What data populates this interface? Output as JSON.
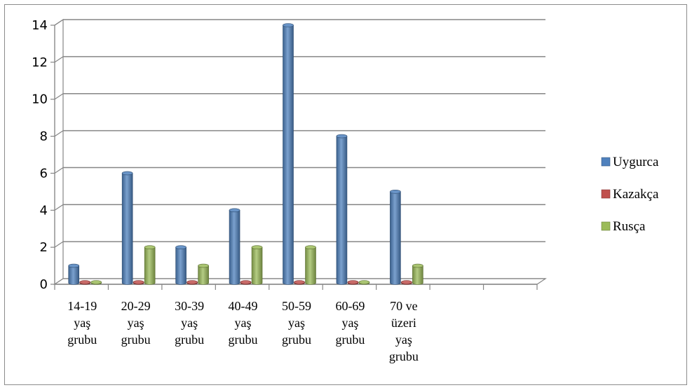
{
  "chart_data": {
    "type": "bar",
    "categories": [
      [
        "14-19",
        "yaş",
        "grubu"
      ],
      [
        "20-29",
        "yaş",
        "grubu"
      ],
      [
        "30-39",
        "yaş",
        "grubu"
      ],
      [
        "40-49",
        "yaş",
        "grubu"
      ],
      [
        "50-59",
        "yaş",
        "grubu"
      ],
      [
        "60-69",
        "yaş",
        "grubu"
      ],
      [
        "70 ve",
        "üzeri",
        "yaş",
        "grubu"
      ],
      [],
      []
    ],
    "series": [
      {
        "name": "Uygurca",
        "color": "#4f81bd",
        "values": [
          1,
          6,
          2,
          4,
          14,
          8,
          5,
          null,
          null
        ]
      },
      {
        "name": "Kazakça",
        "color": "#c0504d",
        "values": [
          0,
          0,
          0,
          0,
          0,
          0,
          0,
          null,
          null
        ]
      },
      {
        "name": "Rusça",
        "color": "#9bbb59",
        "values": [
          0,
          2,
          1,
          2,
          2,
          0,
          1,
          null,
          null
        ]
      }
    ],
    "ylim": [
      0,
      14
    ],
    "yticks": [
      0,
      2,
      4,
      6,
      8,
      10,
      12,
      14
    ],
    "grid": true,
    "legend": "right",
    "title": "",
    "xlabel": "",
    "ylabel": ""
  }
}
